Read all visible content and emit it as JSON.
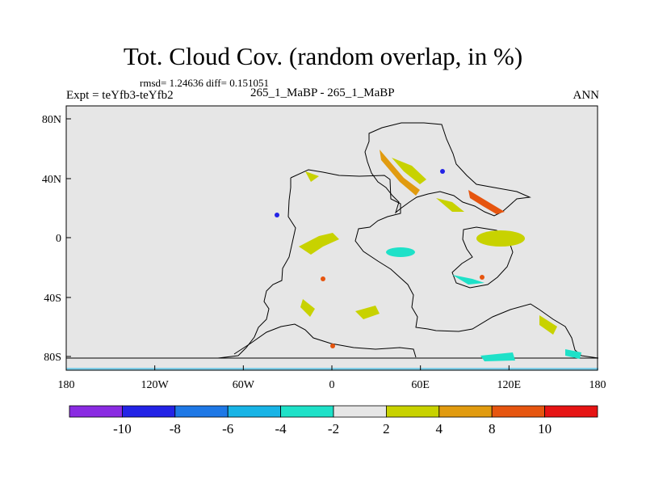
{
  "title": "Tot. Cloud Cov. (random overlap, in %)",
  "stats": "rmsd= 1.24636 diff= 0.151051",
  "experiment": "Expt = teYfb3-teYfb2",
  "case": "265_1_MaBP - 265_1_MaBP",
  "season": "ANN",
  "axes": {
    "x_ticks": [
      "180",
      "120W",
      "60W",
      "0",
      "60E",
      "120E",
      "180"
    ],
    "y_ticks": [
      "80N",
      "40N",
      "0",
      "40S",
      "80S"
    ]
  },
  "colorbar": {
    "colors": [
      "#8a2be2",
      "#2323e6",
      "#1e78e6",
      "#18b4e6",
      "#1ee1c8",
      "#e6e6e6",
      "#c8d200",
      "#e19b0f",
      "#e6550f",
      "#e61414"
    ],
    "labels": [
      "-10",
      "-8",
      "-6",
      "-4",
      "-2",
      "2",
      "4",
      "8",
      "10"
    ]
  },
  "colors": {
    "background": "#e6e6e6",
    "coastline": "#000000"
  }
}
